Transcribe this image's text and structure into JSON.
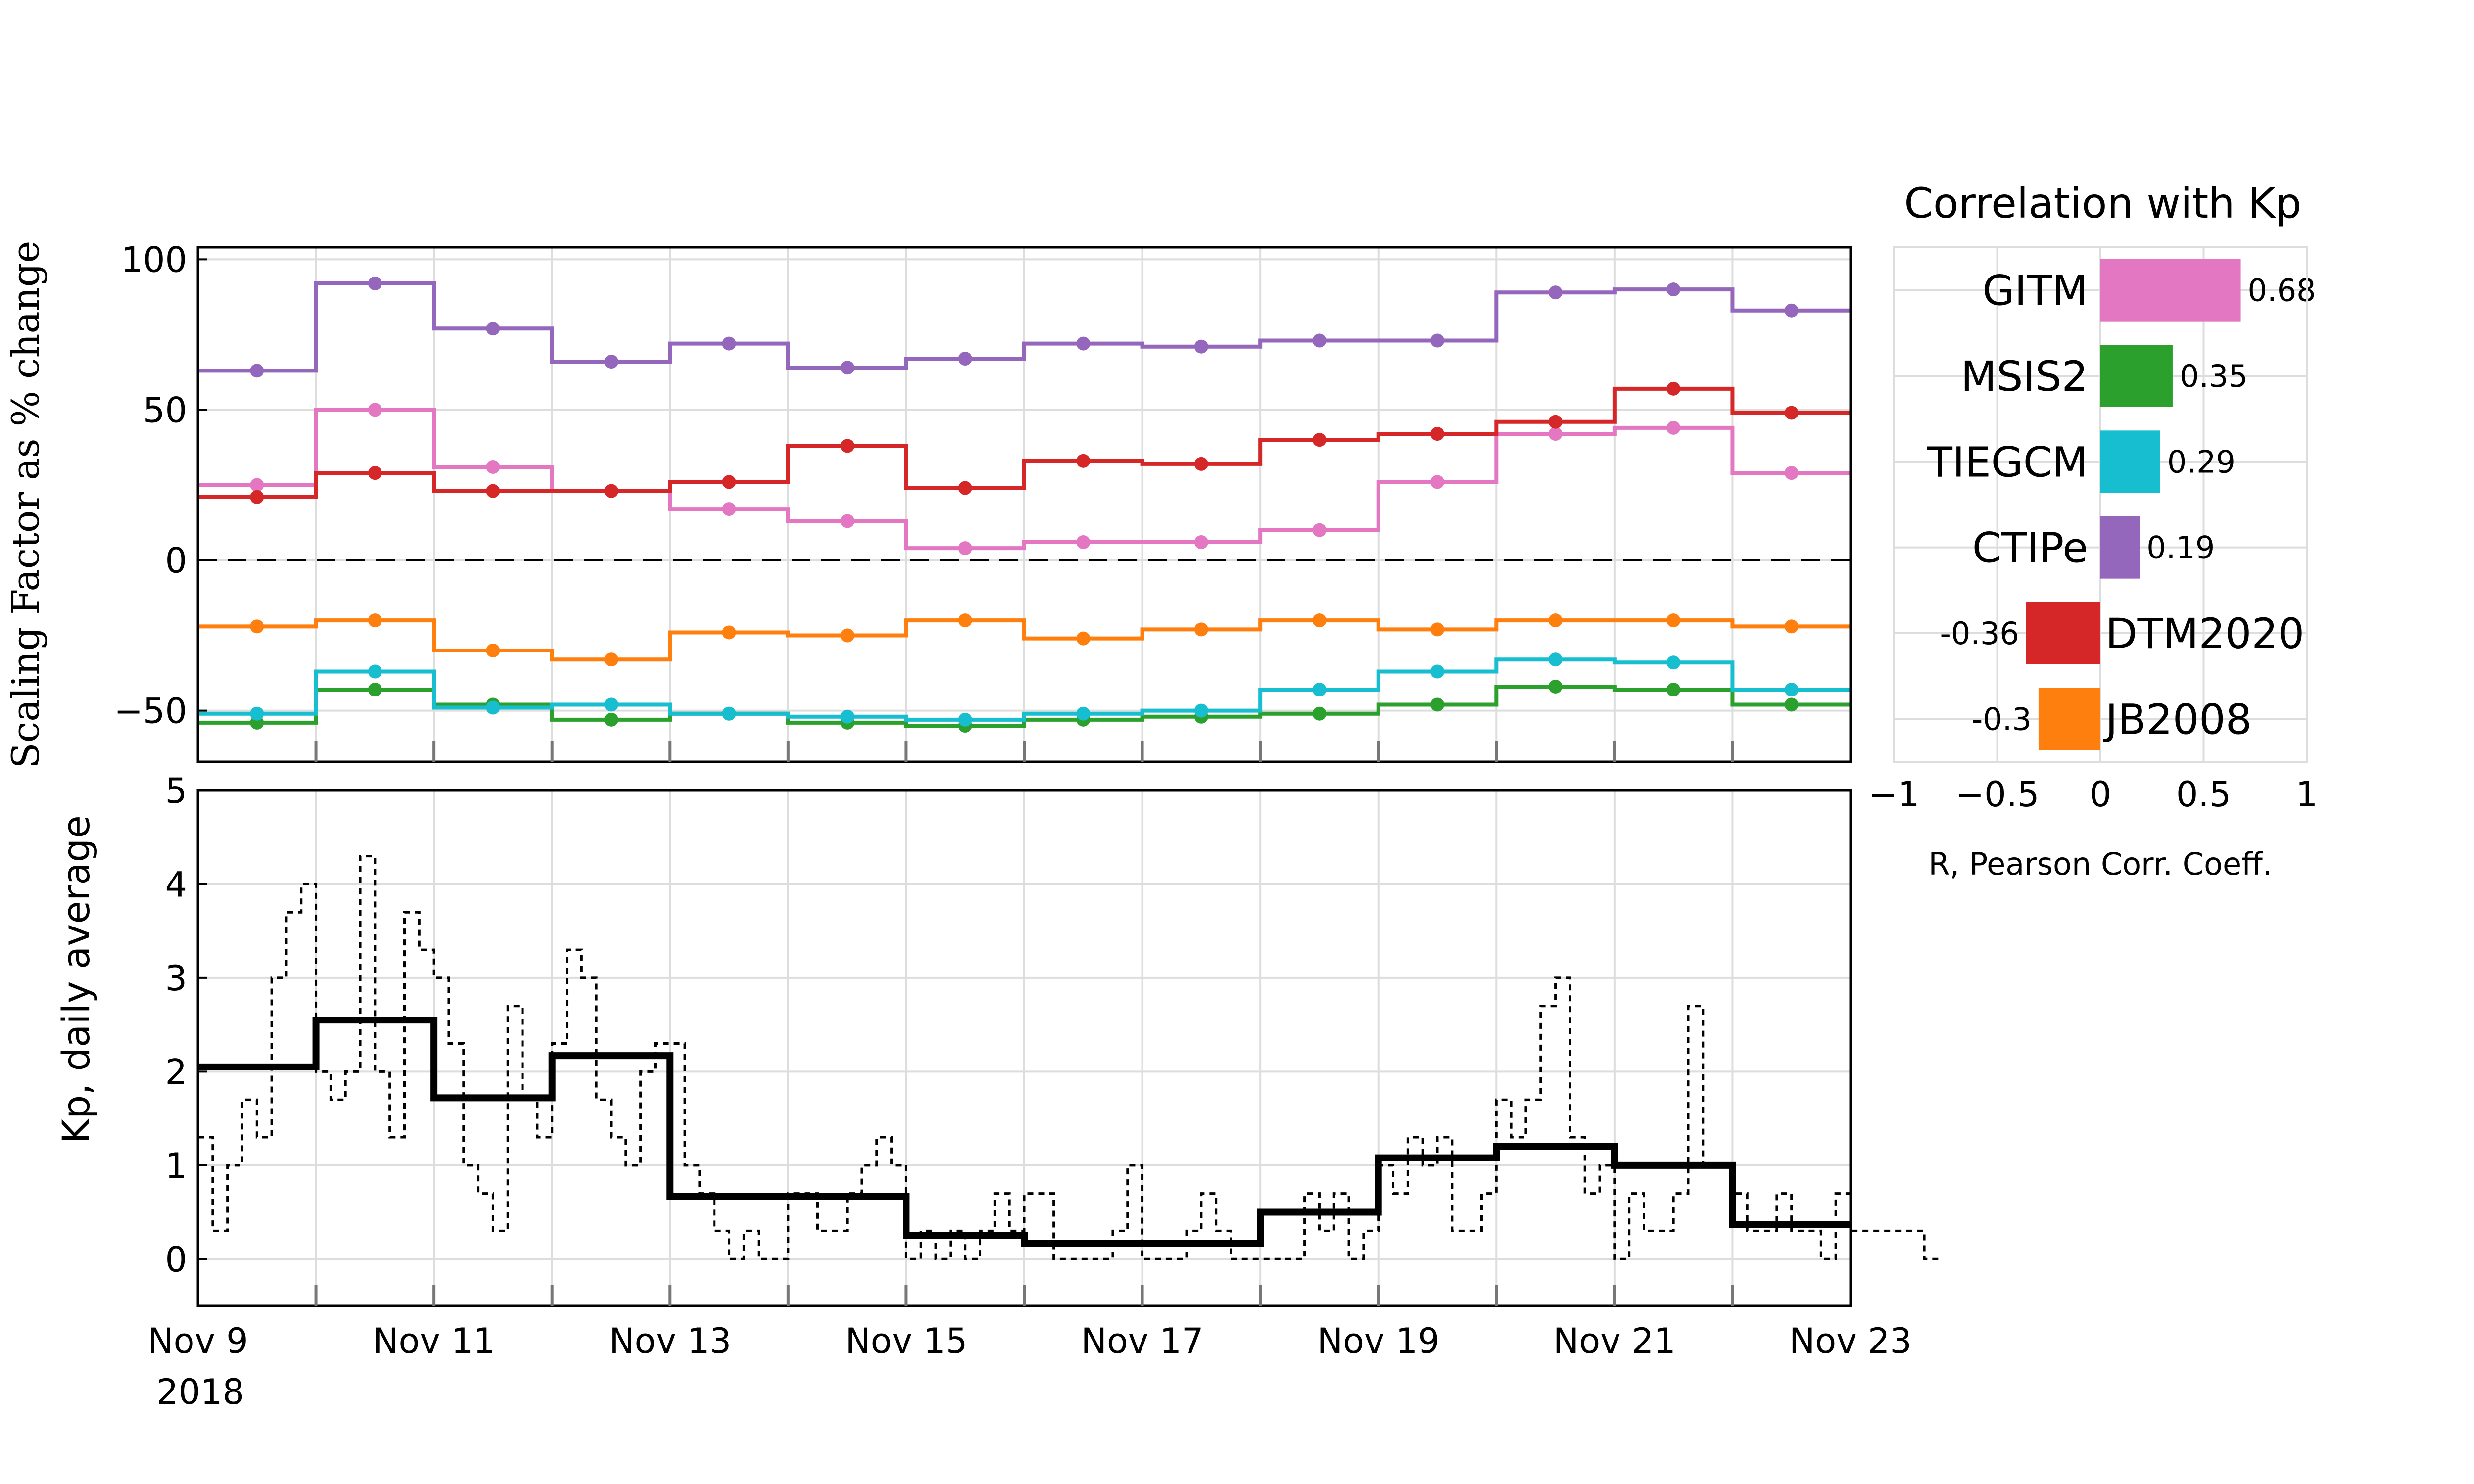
{
  "chart_data": [
    {
      "type": "line",
      "step": "post",
      "ylabel": "Scaling Factor as % change",
      "ylim": [
        -67,
        104
      ],
      "yticks": [
        100,
        50,
        0,
        -50
      ],
      "zero_line": "dashed",
      "grid": true,
      "x": [
        "2018-11-09",
        "2018-11-10",
        "2018-11-11",
        "2018-11-12",
        "2018-11-13",
        "2018-11-14",
        "2018-11-15",
        "2018-11-16",
        "2018-11-17",
        "2018-11-18",
        "2018-11-19",
        "2018-11-20",
        "2018-11-21",
        "2018-11-22"
      ],
      "series": [
        {
          "name": "GITM",
          "color": "#e377c2",
          "values": [
            25,
            50,
            31,
            23,
            17,
            13,
            4,
            6,
            6,
            10,
            26,
            42,
            44,
            29
          ]
        },
        {
          "name": "MSIS2",
          "color": "#2ca02c",
          "values": [
            -54,
            -43,
            -48,
            -53,
            -51,
            -54,
            -55,
            -53,
            -52,
            -51,
            -48,
            -42,
            -43,
            -48
          ]
        },
        {
          "name": "TIEGCM",
          "color": "#17becf",
          "values": [
            -51,
            -37,
            -49,
            -48,
            -51,
            -52,
            -53,
            -51,
            -50,
            -43,
            -37,
            -33,
            -34,
            -43
          ]
        },
        {
          "name": "CTIPe",
          "color": "#9467bd",
          "values": [
            63,
            92,
            77,
            66,
            72,
            64,
            67,
            72,
            71,
            73,
            73,
            89,
            90,
            83
          ]
        },
        {
          "name": "DTM2020",
          "color": "#d62728",
          "values": [
            21,
            29,
            23,
            23,
            26,
            38,
            24,
            33,
            32,
            40,
            42,
            46,
            57,
            49
          ]
        },
        {
          "name": "JB2008",
          "color": "#ff7f0e",
          "values": [
            -22,
            -20,
            -30,
            -33,
            -24,
            -25,
            -20,
            -26,
            -23,
            -20,
            -23,
            -20,
            -20,
            -22
          ]
        }
      ]
    },
    {
      "type": "line",
      "ylabel": "Kp, daily average",
      "ylim": [
        -0.5,
        5
      ],
      "yticks": [
        5,
        4,
        3,
        2,
        1,
        0
      ],
      "xlim": [
        "2018-11-09",
        "2018-11-23"
      ],
      "xticks": [
        "Nov 9",
        "Nov 11",
        "Nov 13",
        "Nov 15",
        "Nov 17",
        "Nov 19",
        "Nov 21",
        "Nov 23"
      ],
      "xtick_year": "2018",
      "grid": true,
      "daily_kp": {
        "x": [
          "2018-11-09",
          "2018-11-10",
          "2018-11-11",
          "2018-11-12",
          "2018-11-13",
          "2018-11-14",
          "2018-11-15",
          "2018-11-16",
          "2018-11-17",
          "2018-11-18",
          "2018-11-19",
          "2018-11-20",
          "2018-11-21",
          "2018-11-22"
        ],
        "values": [
          2.05,
          2.55,
          1.72,
          2.17,
          0.67,
          0.67,
          0.25,
          0.17,
          0.17,
          0.5,
          1.08,
          1.2,
          1.0,
          0.37
        ]
      },
      "threehour_kp": {
        "interval_hours": 3,
        "start": "2018-11-09",
        "values": [
          1.3,
          0.3,
          1.0,
          1.7,
          1.3,
          3.0,
          3.7,
          4.0,
          2.0,
          1.7,
          2.0,
          4.3,
          2.0,
          1.3,
          3.7,
          3.3,
          3.0,
          2.3,
          1.0,
          0.7,
          0.3,
          2.7,
          1.7,
          1.3,
          2.3,
          3.3,
          3.0,
          1.7,
          1.3,
          1.0,
          2.0,
          2.3,
          2.3,
          1.0,
          0.7,
          0.3,
          0.0,
          0.3,
          0.0,
          0.0,
          0.7,
          0.7,
          0.3,
          0.3,
          0.7,
          1.0,
          1.3,
          1.0,
          0.0,
          0.3,
          0.0,
          0.3,
          0.0,
          0.3,
          0.7,
          0.3,
          0.7,
          0.7,
          0.0,
          0.0,
          0.0,
          0.0,
          0.3,
          1.0,
          0.0,
          0.0,
          0.0,
          0.3,
          0.7,
          0.3,
          0.0,
          0.0,
          0.0,
          0.0,
          0.0,
          0.7,
          0.3,
          0.7,
          0.0,
          0.3,
          1.0,
          0.7,
          1.3,
          1.0,
          1.3,
          0.3,
          0.3,
          0.7,
          1.7,
          1.3,
          1.7,
          2.7,
          3.0,
          1.3,
          0.7,
          1.0,
          0.0,
          0.7,
          0.3,
          0.3,
          0.7,
          2.7,
          1.0,
          1.0,
          0.7,
          0.3,
          0.3,
          0.7,
          0.3,
          0.3,
          0.0,
          0.7,
          0.3,
          0.3,
          0.3,
          0.3,
          0.3,
          0.0
        ]
      }
    },
    {
      "type": "bar",
      "orientation": "horizontal",
      "title": "Correlation with Kp",
      "xlabel": "R, Pearson Corr. Coeff.",
      "xlim": [
        -1,
        1
      ],
      "xticks": [
        "−1",
        "−0.5",
        "0",
        "0.5",
        "1"
      ],
      "grid": true,
      "categories": [
        "GITM",
        "MSIS2",
        "TIEGCM",
        "CTIPe",
        "DTM2020",
        "JB2008"
      ],
      "values": [
        0.68,
        0.35,
        0.29,
        0.19,
        -0.36,
        -0.3
      ],
      "value_labels": [
        "0.68",
        "0.35",
        "0.29",
        "0.19",
        "-0.36",
        "-0.3"
      ],
      "colors": [
        "#e377c2",
        "#2ca02c",
        "#17becf",
        "#9467bd",
        "#d62728",
        "#ff7f0e"
      ]
    }
  ]
}
